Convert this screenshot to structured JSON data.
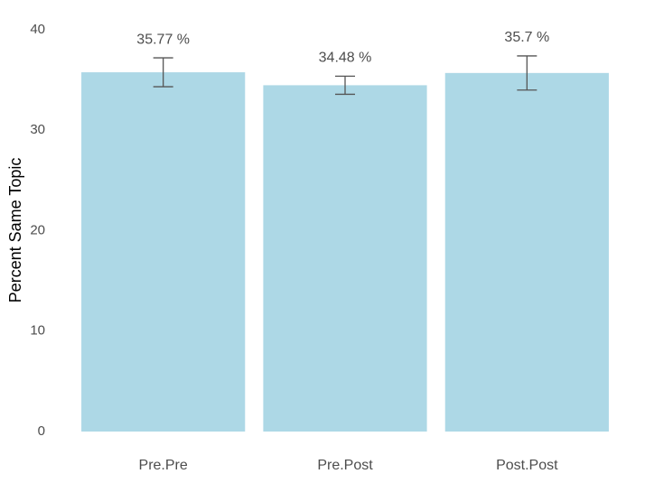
{
  "chart_data": {
    "type": "bar",
    "y_label": "Percent Same Topic",
    "categories": [
      "Pre.Pre",
      "Pre.Post",
      "Post.Post"
    ],
    "values": [
      35.77,
      34.48,
      35.7
    ],
    "value_labels": [
      "35.77 %",
      "34.48 %",
      "35.7 %"
    ],
    "errors": [
      1.44,
      0.9,
      1.7
    ],
    "color": "#add8e6",
    "error_color": "#555555",
    "ylim": [
      0,
      40
    ],
    "yticks": [
      0,
      10,
      20,
      30,
      40
    ],
    "grid": false
  }
}
